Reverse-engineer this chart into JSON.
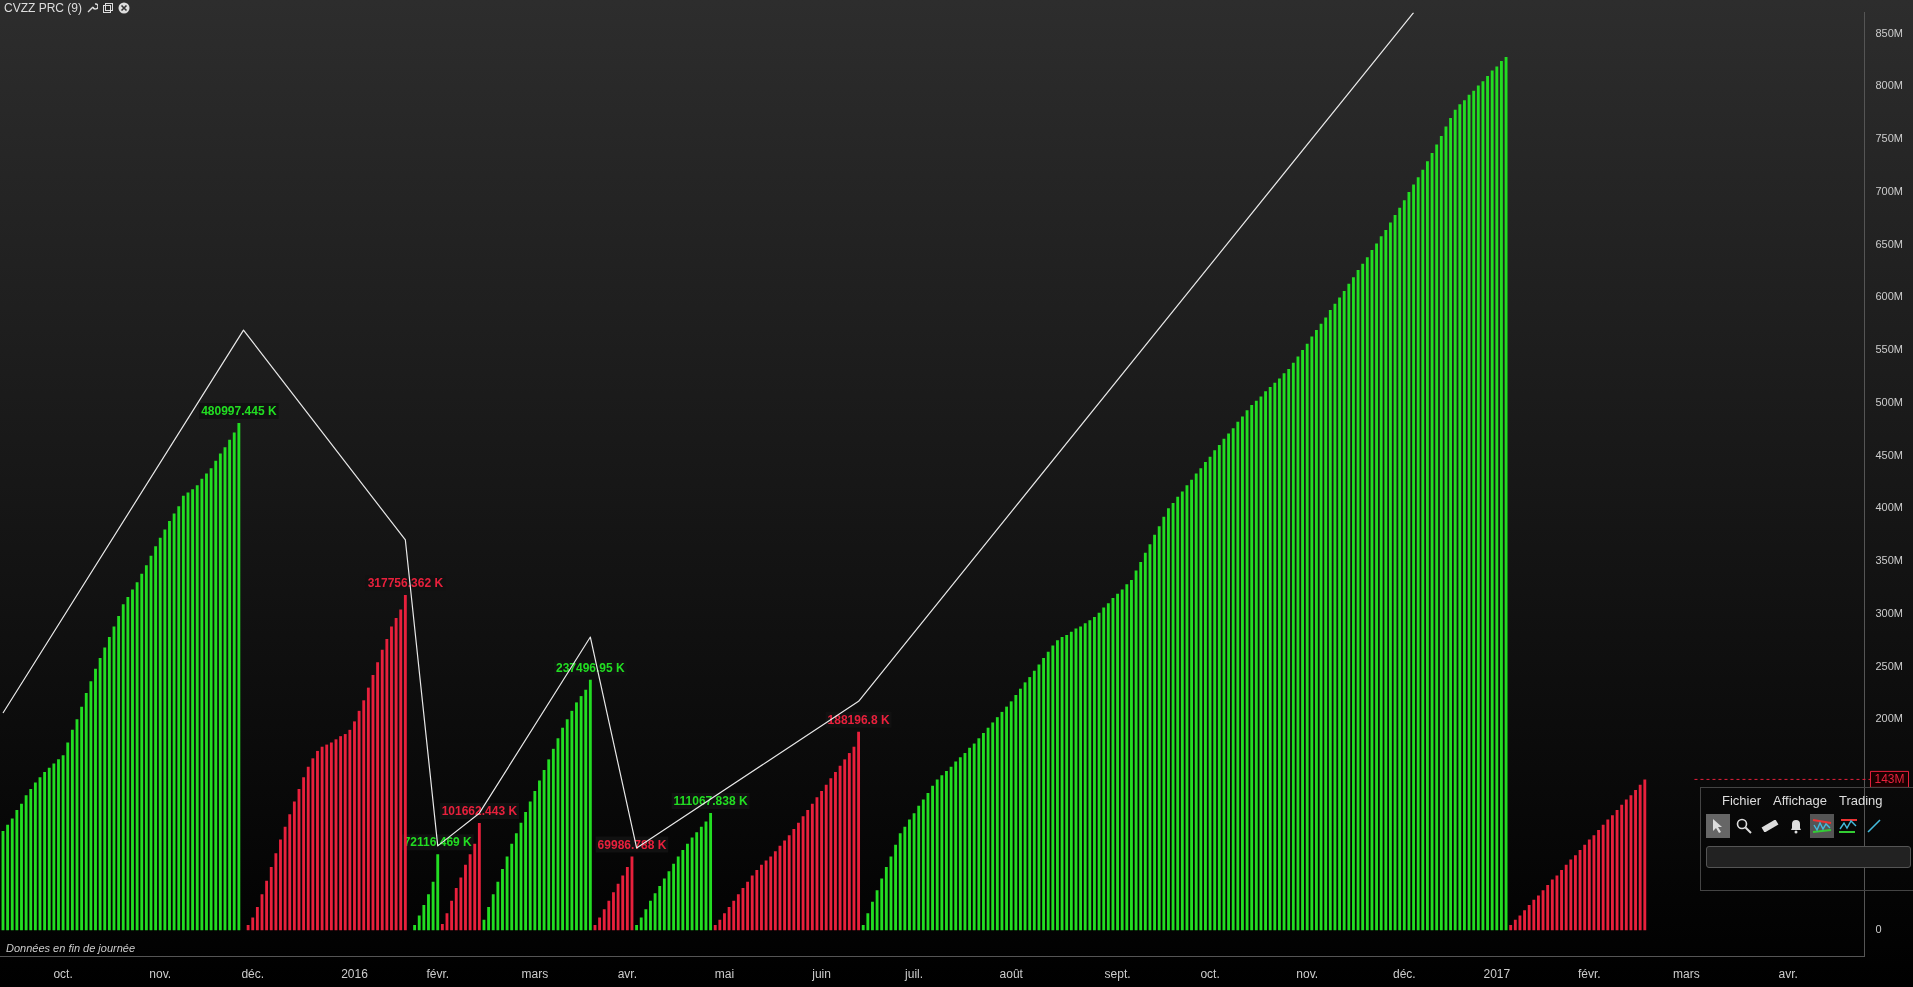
{
  "chart_data": {
    "type": "bar",
    "title": "CVZZ PRC (9)",
    "categories": [
      null,
      null,
      null,
      null,
      null,
      null,
      null,
      null,
      null,
      null,
      null,
      null,
      null,
      "oct.",
      null,
      null,
      null,
      null,
      null,
      null,
      null,
      null,
      null,
      null,
      null,
      null,
      null,
      null,
      null,
      null,
      null,
      null,
      null,
      null,
      "nov.",
      null,
      null,
      null,
      null,
      null,
      null,
      null,
      null,
      null,
      null,
      null,
      null,
      null,
      null,
      null,
      null,
      null,
      null,
      null,
      "déc.",
      null,
      null,
      null,
      null,
      null,
      null,
      null,
      null,
      null,
      null,
      null,
      null,
      null,
      null,
      null,
      null,
      null,
      null,
      null,
      null,
      null,
      "2016",
      null,
      null,
      null,
      null,
      null,
      null,
      null,
      null,
      null,
      null,
      null,
      null,
      null,
      null,
      null,
      null,
      null,
      "févr.",
      null,
      null,
      null,
      null,
      null,
      null,
      null,
      null,
      null,
      null,
      null,
      null,
      null,
      null,
      null,
      null,
      null,
      null,
      null,
      null,
      "mars",
      null,
      null,
      null,
      null,
      null,
      null,
      null,
      null,
      null,
      null,
      null,
      null,
      null,
      null,
      null,
      null,
      null,
      null,
      null,
      "avr.",
      null,
      null,
      null,
      null,
      null,
      null,
      null,
      null,
      null,
      null,
      null,
      null,
      null,
      null,
      null,
      null,
      null,
      null,
      null,
      null,
      "mai",
      null,
      null,
      null,
      null,
      null,
      null,
      null,
      null,
      null,
      null,
      null,
      null,
      null,
      null,
      null,
      null,
      null,
      null,
      null,
      null,
      "juin",
      null,
      null,
      null,
      null,
      null,
      null,
      null,
      null,
      null,
      null,
      null,
      null,
      null,
      null,
      null,
      null,
      null,
      null,
      null,
      "juil.",
      null,
      null,
      null,
      null,
      null,
      null,
      null,
      null,
      null,
      null,
      null,
      null,
      null,
      null,
      null,
      null,
      null,
      null,
      null,
      null,
      "août",
      null,
      null,
      null,
      null,
      null,
      null,
      null,
      null,
      null,
      null,
      null,
      null,
      null,
      null,
      null,
      null,
      null,
      null,
      null,
      null,
      null,
      null,
      "sept.",
      null,
      null,
      null,
      null,
      null,
      null,
      null,
      null,
      null,
      null,
      null,
      null,
      null,
      null,
      null,
      null,
      null,
      null,
      null,
      "oct.",
      null,
      null,
      null,
      null,
      null,
      null,
      null,
      null,
      null,
      null,
      null,
      null,
      null,
      null,
      null,
      null,
      null,
      null,
      null,
      null,
      "nov.",
      null,
      null,
      null,
      null,
      null,
      null,
      null,
      null,
      null,
      null,
      null,
      null,
      null,
      null,
      null,
      null,
      null,
      null,
      null,
      null,
      "déc.",
      null,
      null,
      null,
      null,
      null,
      null,
      null,
      null,
      null,
      null,
      null,
      null,
      null,
      null,
      null,
      null,
      null,
      null,
      null,
      "2017",
      null,
      null,
      null,
      null,
      null,
      null,
      null,
      null,
      null,
      null,
      null,
      null,
      null,
      null,
      null,
      null,
      null,
      null,
      null,
      "févr.",
      null,
      null,
      null,
      null,
      null,
      null,
      null,
      null,
      null,
      null,
      null,
      null,
      null,
      null,
      null,
      null,
      null,
      null,
      null,
      null,
      "mars",
      null,
      null,
      null,
      null,
      null,
      null,
      null,
      null,
      null,
      null,
      null,
      null,
      null,
      null,
      null,
      null,
      null,
      null,
      null,
      null,
      null,
      "avr.",
      null,
      null,
      null,
      null,
      null,
      null,
      null,
      null,
      null,
      null,
      null,
      null,
      null,
      null,
      null,
      null
    ],
    "series": [
      {
        "color": "#22dd22",
        "values": [
          94,
          100,
          106,
          114,
          120,
          128,
          134,
          140,
          145,
          150,
          154,
          158,
          162,
          166,
          178,
          190,
          200,
          212,
          225,
          236,
          248,
          258,
          268,
          278,
          288,
          298,
          309,
          316,
          323,
          330,
          338,
          346,
          355,
          364,
          372,
          380,
          388,
          395,
          402,
          412,
          415,
          418,
          422,
          428,
          433,
          438,
          445,
          452,
          458,
          465,
          472,
          480.997445,
          null,
          null,
          null,
          null,
          null,
          null,
          null,
          null,
          null,
          null,
          null,
          null,
          null,
          null,
          null,
          null,
          null,
          null,
          null,
          null,
          null,
          null,
          null,
          null,
          null,
          null,
          null,
          null,
          null,
          null,
          null,
          null,
          null,
          null,
          null,
          null,
          null,
          5,
          14,
          24,
          34,
          46,
          72.116469,
          null,
          null,
          null,
          null,
          null,
          null,
          null,
          null,
          null,
          10,
          22,
          34,
          46,
          58,
          70,
          82,
          92,
          102,
          112,
          122,
          132,
          142,
          152,
          162,
          172,
          182,
          192,
          200,
          208,
          216,
          222,
          228,
          237.49695,
          null,
          null,
          null,
          null,
          null,
          null,
          null,
          null,
          null,
          5,
          12,
          20,
          28,
          35,
          42,
          49,
          56,
          63,
          70,
          76,
          82,
          88,
          93,
          98,
          103,
          111.067838,
          null,
          null,
          null,
          null,
          null,
          null,
          null,
          null,
          null,
          null,
          null,
          null,
          null,
          null,
          null,
          null,
          null,
          null,
          null,
          null,
          null,
          null,
          null,
          null,
          null,
          null,
          null,
          null,
          null,
          null,
          null,
          null,
          5,
          16,
          27,
          38,
          49,
          60,
          70,
          81,
          92,
          98,
          105,
          111,
          118,
          124,
          130,
          137,
          143,
          147,
          151,
          155,
          160,
          164,
          168,
          173,
          177,
          182,
          187,
          192,
          197,
          202,
          207,
          212,
          217,
          223,
          229,
          235,
          240,
          246,
          252,
          258,
          264,
          270,
          275,
          278,
          280,
          283,
          286,
          288,
          291,
          294,
          297,
          301,
          306,
          310,
          315,
          319,
          323,
          328,
          332,
          341,
          349,
          358,
          366,
          375,
          383,
          392,
          400,
          405,
          411,
          416,
          422,
          427,
          433,
          438,
          444,
          449,
          455,
          460,
          466,
          471,
          476,
          482,
          487,
          493,
          498,
          502,
          506,
          511,
          515,
          519,
          523,
          528,
          532,
          538,
          544,
          550,
          556,
          563,
          569,
          575,
          581,
          588,
          594,
          600,
          606,
          613,
          619,
          626,
          632,
          638,
          645,
          651,
          658,
          664,
          671,
          678,
          685,
          692,
          700,
          707,
          714,
          721,
          729,
          737,
          745,
          753,
          762,
          770,
          778,
          783,
          787,
          792,
          796,
          801,
          805,
          810,
          815,
          819,
          824,
          828,
          null,
          null,
          null,
          null,
          null,
          null,
          null,
          null,
          null,
          null,
          null,
          null,
          null,
          null,
          null,
          null,
          null,
          null,
          null,
          null,
          null,
          null,
          null,
          null,
          null,
          null,
          null,
          null,
          null,
          null,
          null,
          null,
          null,
          null,
          null,
          null,
          null,
          null,
          null,
          null,
          null,
          null,
          null,
          null,
          null,
          null,
          null,
          null,
          null,
          null,
          null,
          null,
          null,
          null,
          null,
          null,
          null,
          null,
          null,
          null,
          null,
          null,
          null,
          null,
          null,
          null,
          null,
          null,
          null,
          null,
          null,
          null,
          null,
          null,
          null,
          null,
          null
        ],
        "value_labels": [
          null,
          null,
          null,
          null,
          null,
          null,
          null,
          null,
          null,
          null,
          null,
          null,
          null,
          null,
          null,
          null,
          null,
          null,
          null,
          null,
          null,
          null,
          null,
          null,
          null,
          null,
          null,
          null,
          null,
          null,
          null,
          null,
          null,
          null,
          null,
          null,
          null,
          null,
          null,
          null,
          null,
          null,
          null,
          null,
          null,
          null,
          null,
          null,
          null,
          null,
          null,
          "480997.445 K",
          null,
          null,
          null,
          null,
          null,
          null,
          null,
          null,
          null,
          null,
          null,
          null,
          null,
          null,
          null,
          null,
          null,
          null,
          null,
          null,
          null,
          null,
          null,
          null,
          null,
          null,
          null,
          null,
          null,
          null,
          null,
          null,
          null,
          null,
          null,
          null,
          null,
          null,
          null,
          null,
          null,
          null,
          "72116.469 K",
          null,
          null,
          null,
          null,
          null,
          null,
          null,
          null,
          null,
          null,
          null,
          null,
          null,
          null,
          null,
          null,
          null,
          null,
          null,
          null,
          null,
          null,
          null,
          null,
          null,
          null,
          null,
          null,
          null,
          null,
          null,
          null,
          "237496.95 K",
          null,
          null,
          null,
          null,
          null,
          null,
          null,
          null,
          null,
          null,
          null,
          null,
          null,
          null,
          null,
          null,
          null,
          null,
          null,
          null,
          null,
          null,
          null,
          null,
          null,
          "111067.838 K",
          null,
          null,
          null,
          null,
          null,
          null,
          null,
          null,
          null,
          null,
          null,
          null,
          null,
          null,
          null,
          null,
          null,
          null,
          null,
          null,
          null,
          null,
          null,
          null,
          null,
          null,
          null,
          null,
          null,
          null,
          null,
          null,
          null,
          null,
          null,
          null,
          null,
          null,
          null,
          null,
          null,
          null,
          null,
          null,
          null,
          null,
          null,
          null,
          null,
          null,
          null,
          null,
          null,
          null,
          null,
          null,
          null,
          null,
          null,
          null,
          null,
          null,
          null,
          null,
          null,
          null,
          null,
          null,
          null,
          null,
          null,
          null,
          null,
          null,
          null,
          null,
          null,
          null,
          null,
          null,
          null,
          null,
          null,
          null,
          null,
          null,
          null,
          null,
          null,
          null,
          null,
          null,
          null,
          null,
          null,
          null,
          null,
          null,
          null,
          null,
          null,
          null,
          null,
          null,
          null,
          null,
          null,
          null,
          null,
          null,
          null,
          null,
          null,
          null,
          null,
          null,
          null,
          null,
          null,
          null,
          null,
          null,
          null,
          null,
          null,
          null,
          null,
          null,
          null,
          null,
          null,
          null,
          null,
          null,
          null,
          null,
          null,
          null,
          null,
          null,
          null,
          null,
          null,
          null,
          null,
          null,
          null,
          null,
          null,
          null,
          null,
          null,
          null,
          null,
          null,
          null,
          null,
          null,
          null,
          null,
          null,
          null,
          null,
          null,
          null,
          null,
          null,
          null,
          null,
          null,
          null,
          null,
          null,
          null,
          null,
          null,
          null,
          null,
          null,
          null,
          null,
          null,
          null,
          null,
          null,
          null,
          null,
          null,
          null,
          null,
          null,
          null,
          null,
          null,
          null,
          null,
          null,
          null,
          null,
          null,
          null,
          null,
          null,
          null,
          null,
          null,
          null,
          null,
          null,
          null,
          null,
          null,
          null,
          null,
          null,
          null,
          null,
          null,
          null,
          null,
          null,
          null,
          null,
          null,
          null,
          null,
          null,
          null,
          null,
          null,
          null,
          null,
          null,
          null,
          null,
          null,
          null,
          null,
          null,
          null,
          null,
          null,
          null,
          null,
          null,
          null,
          null,
          null,
          null
        ]
      },
      {
        "color": "#e8203c",
        "values": [
          null,
          null,
          null,
          null,
          null,
          null,
          null,
          null,
          null,
          null,
          null,
          null,
          null,
          null,
          null,
          null,
          null,
          null,
          null,
          null,
          null,
          null,
          null,
          null,
          null,
          null,
          null,
          null,
          null,
          null,
          null,
          null,
          null,
          null,
          null,
          null,
          null,
          null,
          null,
          null,
          null,
          null,
          null,
          null,
          null,
          null,
          null,
          null,
          null,
          null,
          null,
          null,
          null,
          5,
          12,
          22,
          34,
          47,
          60,
          73,
          86,
          98,
          110,
          122,
          134,
          145,
          155,
          163,
          170,
          174,
          176,
          178,
          181,
          184,
          186,
          190,
          198,
          208,
          218,
          230,
          242,
          254,
          266,
          276,
          288,
          296,
          304,
          317.756362,
          null,
          null,
          null,
          null,
          null,
          null,
          null,
          6,
          16,
          28,
          40,
          50,
          62,
          72,
          82,
          101.662443,
          null,
          null,
          null,
          null,
          null,
          null,
          null,
          null,
          null,
          null,
          null,
          null,
          null,
          null,
          null,
          null,
          null,
          null,
          null,
          null,
          null,
          null,
          null,
          null,
          5,
          12,
          20,
          28,
          36,
          44,
          52,
          60,
          69.986788,
          null,
          null,
          null,
          null,
          null,
          null,
          null,
          null,
          null,
          null,
          null,
          null,
          null,
          null,
          null,
          null,
          null,
          5,
          10,
          16,
          22,
          28,
          34,
          40,
          46,
          52,
          57,
          62,
          66,
          70,
          75,
          80,
          85,
          90,
          96,
          102,
          108,
          114,
          120,
          126,
          132,
          138,
          144,
          150,
          156,
          162,
          168,
          174,
          188.1968,
          null,
          null,
          null,
          null,
          null,
          null,
          null,
          null,
          null,
          null,
          null,
          null,
          null,
          null,
          null,
          null,
          null,
          null,
          null,
          null,
          null,
          null,
          null,
          null,
          null,
          null,
          null,
          null,
          null,
          null,
          null,
          null,
          null,
          null,
          null,
          null,
          null,
          null,
          null,
          null,
          null,
          null,
          null,
          null,
          null,
          null,
          null,
          null,
          null,
          null,
          null,
          null,
          null,
          null,
          null,
          null,
          null,
          null,
          null,
          null,
          null,
          null,
          null,
          null,
          null,
          null,
          null,
          null,
          null,
          null,
          null,
          null,
          null,
          null,
          null,
          null,
          null,
          null,
          null,
          null,
          null,
          null,
          null,
          null,
          null,
          null,
          null,
          null,
          null,
          null,
          null,
          null,
          null,
          null,
          null,
          null,
          null,
          null,
          null,
          null,
          null,
          null,
          null,
          null,
          null,
          null,
          null,
          null,
          null,
          null,
          null,
          null,
          null,
          null,
          null,
          null,
          null,
          null,
          null,
          null,
          null,
          null,
          null,
          null,
          null,
          null,
          null,
          null,
          null,
          null,
          null,
          null,
          null,
          null,
          null,
          null,
          null,
          null,
          null,
          null,
          5,
          10,
          14,
          19,
          24,
          29,
          33,
          38,
          43,
          48,
          52,
          57,
          62,
          67,
          71,
          76,
          81,
          86,
          90,
          95,
          100,
          105,
          109,
          114,
          119,
          124,
          128,
          133,
          138,
          143,
          null,
          null,
          null,
          null,
          null,
          null,
          null,
          null,
          null,
          null,
          null,
          null,
          null,
          null,
          null,
          null,
          null,
          null,
          null,
          null,
          null,
          null,
          null,
          null,
          null,
          null,
          null,
          null,
          null,
          null,
          null,
          null,
          null,
          null,
          null,
          null,
          null,
          null,
          null,
          null,
          null,
          null,
          null,
          null,
          null,
          null,
          null
        ],
        "value_labels": [
          null,
          null,
          null,
          null,
          null,
          null,
          null,
          null,
          null,
          null,
          null,
          null,
          null,
          null,
          null,
          null,
          null,
          null,
          null,
          null,
          null,
          null,
          null,
          null,
          null,
          null,
          null,
          null,
          null,
          null,
          null,
          null,
          null,
          null,
          null,
          null,
          null,
          null,
          null,
          null,
          null,
          null,
          null,
          null,
          null,
          null,
          null,
          null,
          null,
          null,
          null,
          null,
          null,
          null,
          null,
          null,
          null,
          null,
          null,
          null,
          null,
          null,
          null,
          null,
          null,
          null,
          null,
          null,
          null,
          null,
          null,
          null,
          null,
          null,
          null,
          null,
          null,
          null,
          null,
          null,
          null,
          null,
          null,
          null,
          null,
          null,
          null,
          "317756.362 K",
          null,
          null,
          null,
          null,
          null,
          null,
          null,
          null,
          null,
          null,
          null,
          null,
          null,
          null,
          null,
          "101662.443 K",
          null,
          null,
          null,
          null,
          null,
          null,
          null,
          null,
          null,
          null,
          null,
          null,
          null,
          null,
          null,
          null,
          null,
          null,
          null,
          null,
          null,
          null,
          null,
          null,
          null,
          null,
          null,
          null,
          null,
          null,
          null,
          null,
          "69986.788 K",
          null,
          null,
          null,
          null,
          null,
          null,
          null,
          null,
          null,
          null,
          null,
          null,
          null,
          null,
          null,
          null,
          null,
          null,
          null,
          null,
          null,
          null,
          null,
          null,
          null,
          null,
          null,
          null,
          null,
          null,
          null,
          null,
          null,
          null,
          null,
          null,
          null,
          null,
          null,
          null,
          null,
          null,
          null,
          null,
          null,
          null,
          null,
          null,
          "188196.8 K",
          null,
          null,
          null,
          null,
          null,
          null,
          null,
          null,
          null,
          null,
          null,
          null,
          null,
          null,
          null,
          null,
          null,
          null,
          null,
          null,
          null,
          null,
          null,
          null,
          null,
          null,
          null,
          null,
          null,
          null,
          null,
          null,
          null,
          null,
          null,
          null,
          null,
          null,
          null,
          null,
          null,
          null,
          null,
          null,
          null,
          null,
          null,
          null,
          null,
          null,
          null,
          null,
          null,
          null,
          null,
          null,
          null,
          null,
          null,
          null,
          null,
          null,
          null,
          null,
          null,
          null,
          null,
          null,
          null,
          null,
          null,
          null,
          null,
          null,
          null,
          null,
          null,
          null,
          null,
          null,
          null,
          null,
          null,
          null,
          null,
          null,
          null,
          null,
          null,
          null,
          null,
          null,
          null,
          null,
          null,
          null,
          null,
          null,
          null,
          null,
          null,
          null,
          null,
          null,
          null,
          null,
          null,
          null,
          null,
          null,
          null,
          null,
          null,
          null,
          null,
          null,
          null,
          null,
          null,
          null,
          null,
          null,
          null,
          null,
          null,
          null,
          null,
          null,
          null,
          null,
          null,
          null,
          null,
          null,
          null,
          null,
          null,
          null,
          null,
          null,
          null,
          null,
          null,
          null,
          null,
          null,
          null,
          null,
          null,
          null,
          null,
          null,
          null,
          null,
          null,
          null,
          null,
          null,
          null,
          null,
          null,
          null,
          null,
          null,
          null,
          null,
          null,
          null,
          null,
          null,
          null,
          null,
          null,
          null,
          null,
          null,
          null,
          null,
          null,
          null,
          null,
          null,
          null,
          null,
          null,
          null,
          null,
          null,
          null,
          null,
          null,
          null,
          null,
          null,
          null,
          null,
          null,
          null,
          null,
          null,
          null,
          null,
          null,
          null,
          null,
          null,
          null,
          null,
          null,
          null,
          null,
          null,
          null,
          null,
          null,
          null,
          null
        ]
      },
      {
        "type": "line",
        "color": "#e8e8e8",
        "values": [
          206,
          null,
          null,
          null,
          null,
          null,
          null,
          null,
          null,
          null,
          null,
          null,
          null,
          null,
          null,
          null,
          null,
          null,
          null,
          null,
          null,
          null,
          null,
          null,
          null,
          null,
          null,
          null,
          null,
          null,
          null,
          null,
          null,
          null,
          null,
          null,
          null,
          null,
          null,
          null,
          null,
          null,
          null,
          null,
          null,
          null,
          null,
          null,
          null,
          null,
          null,
          null,
          569,
          null,
          null,
          null,
          null,
          null,
          null,
          null,
          null,
          null,
          null,
          null,
          null,
          null,
          null,
          null,
          null,
          null,
          null,
          null,
          null,
          null,
          null,
          null,
          null,
          null,
          null,
          null,
          null,
          null,
          null,
          null,
          null,
          null,
          null,
          370,
          null,
          null,
          null,
          null,
          null,
          null,
          80,
          null,
          null,
          null,
          null,
          null,
          null,
          null,
          null,
          111,
          null,
          null,
          null,
          null,
          null,
          null,
          null,
          null,
          null,
          null,
          null,
          null,
          null,
          null,
          null,
          null,
          null,
          null,
          null,
          null,
          null,
          null,
          null,
          278,
          null,
          null,
          null,
          null,
          null,
          null,
          null,
          null,
          null,
          78,
          null,
          null,
          null,
          null,
          null,
          null,
          null,
          null,
          null,
          null,
          null,
          null,
          null,
          null,
          null,
          null,
          null,
          null,
          null,
          null,
          null,
          null,
          null,
          null,
          null,
          null,
          null,
          null,
          null,
          null,
          null,
          null,
          null,
          null,
          null,
          null,
          null,
          null,
          null,
          null,
          null,
          null,
          null,
          null,
          null,
          null,
          null,
          217,
          null,
          null,
          null,
          null,
          null,
          null,
          null,
          null,
          null,
          null,
          null,
          null,
          null,
          null,
          null,
          null,
          null,
          null,
          null,
          null,
          null,
          null,
          null,
          null,
          null,
          null,
          null,
          null,
          null,
          null,
          null,
          null,
          null,
          null,
          null,
          null,
          null,
          null,
          null,
          null,
          null,
          null,
          null,
          null,
          null,
          null,
          null,
          null,
          null,
          null,
          null,
          null,
          null,
          null,
          null,
          null,
          null,
          null,
          null,
          null,
          null,
          null,
          null,
          null,
          null,
          null,
          null,
          null,
          null,
          null,
          null,
          null,
          null,
          null,
          null,
          null,
          null,
          null,
          null,
          null,
          null,
          null,
          null,
          null,
          null,
          null,
          null,
          null,
          null,
          null,
          null,
          null,
          null,
          null,
          null,
          null,
          null,
          null,
          null,
          null,
          null,
          null,
          null,
          null,
          null,
          null,
          null,
          null,
          null,
          null,
          null,
          null,
          null,
          null,
          null,
          null,
          null,
          null,
          null,
          870,
          null,
          null,
          null,
          null,
          null,
          null,
          null,
          null,
          null,
          null,
          null,
          null,
          null,
          null,
          null,
          null,
          null,
          null,
          null,
          null,
          null,
          null,
          null,
          null,
          null,
          null,
          null,
          null,
          null,
          null,
          null,
          null,
          null,
          null,
          null,
          null,
          null,
          null,
          null,
          null,
          null,
          null,
          null,
          null,
          null,
          null,
          null,
          null,
          null,
          null,
          null,
          null,
          null,
          null,
          null,
          null,
          null,
          null,
          null,
          null,
          null,
          null,
          null,
          null,
          null,
          null,
          null,
          null,
          null,
          null,
          null,
          null,
          null,
          null,
          null,
          null,
          null,
          null,
          null,
          null,
          null,
          null,
          null,
          null,
          null,
          null,
          null,
          null,
          null,
          null,
          null,
          null,
          null,
          null,
          null,
          null,
          null
        ]
      }
    ],
    "ylim": [
      -25,
      870
    ],
    "yticks": [
      0,
      {
        "value": 200,
        "label": "200M"
      },
      {
        "value": 250,
        "label": "250M"
      },
      {
        "value": 300,
        "label": "300M"
      },
      {
        "value": 350,
        "label": "350M"
      },
      {
        "value": 400,
        "label": "400M"
      },
      {
        "value": 450,
        "label": "450M"
      },
      {
        "value": 500,
        "label": "500M"
      },
      {
        "value": 550,
        "label": "550M"
      },
      {
        "value": 600,
        "label": "600M"
      },
      {
        "value": 650,
        "label": "650M"
      },
      {
        "value": 700,
        "label": "700M"
      },
      {
        "value": 750,
        "label": "750M"
      },
      {
        "value": 800,
        "label": "800M"
      },
      {
        "value": 850,
        "label": "850M"
      }
    ],
    "ref_lines": [
      {
        "axis": "y",
        "value": 143,
        "label": "143M",
        "color": "#e8203c"
      }
    ],
    "annotations": [
      "Données en fin de journée",
      "Fichier",
      "Affichage",
      "Trading"
    ],
    "marker": "none",
    "grid": false,
    "legend": false
  }
}
